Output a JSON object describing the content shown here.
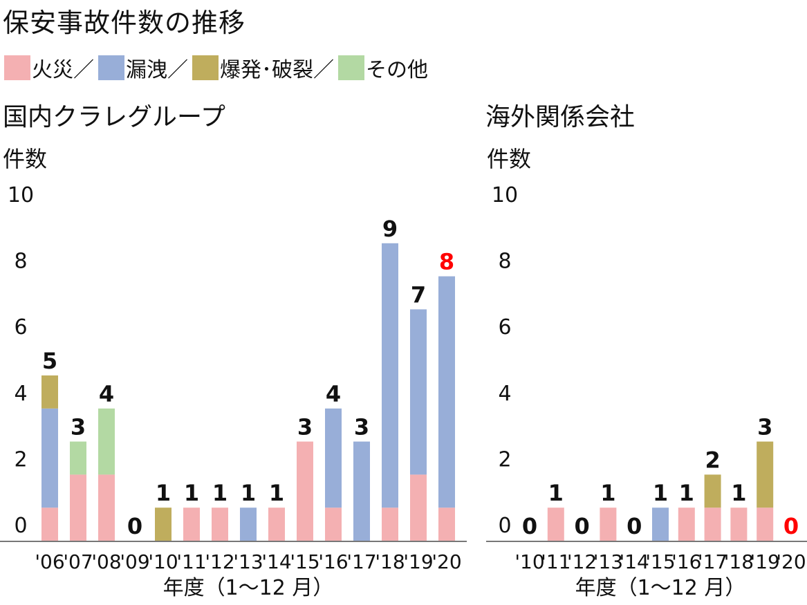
{
  "title": "保安事故件数の推移",
  "legend": [
    {
      "label": "火災／",
      "color": "#f4b0b2"
    },
    {
      "label": "漏洩／",
      "color": "#98aed8"
    },
    {
      "label": "爆発･破裂／",
      "color": "#bfad5d"
    },
    {
      "label": "その他",
      "color": "#b3d9a3"
    }
  ],
  "highlight_color": "#ff0000",
  "chart_data": [
    {
      "type": "bar",
      "stacked": true,
      "title": "国内クラレグループ",
      "ylabel": "件数",
      "xlabel": "年度（1～12 月）",
      "ylim": [
        0,
        10
      ],
      "yticks": [
        0,
        2,
        4,
        6,
        8,
        10
      ],
      "categories": [
        "'06",
        "'07",
        "'08",
        "'09",
        "'10",
        "'11",
        "'12",
        "'13",
        "'14",
        "'15",
        "'16",
        "'17",
        "'18",
        "'19",
        "'20"
      ],
      "totals": [
        "5",
        "3",
        "4",
        "0",
        "1",
        "1",
        "1",
        "1",
        "1",
        "3",
        "4",
        "3",
        "9",
        "7",
        "8"
      ],
      "highlight_index": 14,
      "series": [
        {
          "name": "火災",
          "values": [
            1,
            2,
            2,
            0,
            0,
            1,
            1,
            0,
            1,
            3,
            1,
            0,
            1,
            2,
            1
          ]
        },
        {
          "name": "漏洩",
          "values": [
            3,
            0,
            0,
            0,
            0,
            0,
            0,
            1,
            0,
            0,
            3,
            3,
            8,
            5,
            7
          ]
        },
        {
          "name": "爆発･破裂",
          "values": [
            1,
            0,
            0,
            0,
            1,
            0,
            0,
            0,
            0,
            0,
            0,
            0,
            0,
            0,
            0
          ]
        },
        {
          "name": "その他",
          "values": [
            0,
            1,
            2,
            0,
            0,
            0,
            0,
            0,
            0,
            0,
            0,
            0,
            0,
            0,
            0
          ]
        }
      ]
    },
    {
      "type": "bar",
      "stacked": true,
      "title": "海外関係会社",
      "ylabel": "件数",
      "xlabel": "年度（1～12 月）",
      "ylim": [
        0,
        10
      ],
      "yticks": [
        0,
        2,
        4,
        6,
        8,
        10
      ],
      "categories": [
        "'10",
        "'11",
        "'12",
        "'13",
        "'14",
        "'15",
        "'16",
        "'17",
        "'18",
        "'19",
        "'20"
      ],
      "totals": [
        "0",
        "1",
        "0",
        "1",
        "0",
        "1",
        "1",
        "2",
        "1",
        "3",
        "0"
      ],
      "highlight_index": 10,
      "series": [
        {
          "name": "火災",
          "values": [
            0,
            1,
            0,
            1,
            0,
            0,
            1,
            1,
            1,
            1,
            0
          ]
        },
        {
          "name": "漏洩",
          "values": [
            0,
            0,
            0,
            0,
            0,
            1,
            0,
            0,
            0,
            0,
            0
          ]
        },
        {
          "name": "爆発･破裂",
          "values": [
            0,
            0,
            0,
            0,
            0,
            0,
            0,
            1,
            0,
            2,
            0
          ]
        },
        {
          "name": "その他",
          "values": [
            0,
            0,
            0,
            0,
            0,
            0,
            0,
            0,
            0,
            0,
            0
          ]
        }
      ]
    }
  ]
}
